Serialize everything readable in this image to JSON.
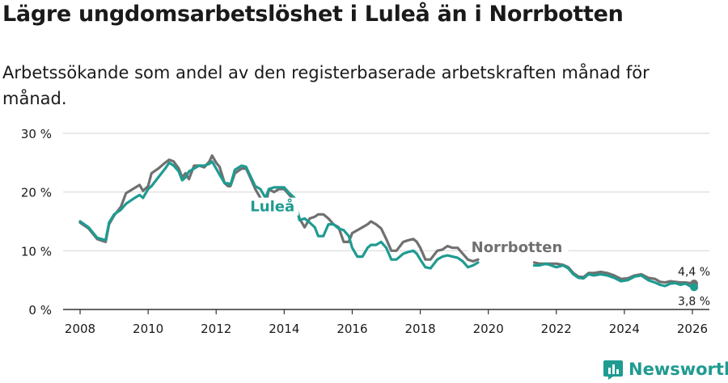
{
  "title": "Lägre ungdomsarbetslöshet i Luleå än i Norrbotten",
  "subtitle": "Arbetssökande som andel av den registerbaserade arbetskraften månad för månad.",
  "brand": "Newsworthy",
  "colors": {
    "lulea": "#1f9b91",
    "norrbotten": "#707070",
    "grid": "#d9d9d9",
    "text": "#1a1a1a",
    "brand": "#1f9b91"
  },
  "chart_data": {
    "type": "line",
    "ylim": [
      0,
      30
    ],
    "xlim": [
      2007.5,
      2026.5
    ],
    "y_ticks": [
      {
        "value": 0,
        "label": "0 %"
      },
      {
        "value": 10,
        "label": "10 %"
      },
      {
        "value": 20,
        "label": "20 %"
      },
      {
        "value": 30,
        "label": "30 %"
      }
    ],
    "x_ticks": [
      {
        "value": 2008,
        "label": "2008"
      },
      {
        "value": 2010,
        "label": "2010"
      },
      {
        "value": 2012,
        "label": "2012"
      },
      {
        "value": 2014,
        "label": "2014"
      },
      {
        "value": 2016,
        "label": "2016"
      },
      {
        "value": 2018,
        "label": "2018"
      },
      {
        "value": 2020,
        "label": "2020"
      },
      {
        "value": 2022,
        "label": "2022"
      },
      {
        "value": 2024,
        "label": "2024"
      },
      {
        "value": 2026,
        "label": "2026"
      }
    ],
    "series": [
      {
        "name": "Norrbotten",
        "label": "Norrbotten",
        "label_at": [
          2019.5,
          9.8
        ],
        "end_label": "4,4 %",
        "end_value": 4.4,
        "points": [
          [
            2008.0,
            14.8
          ],
          [
            2008.25,
            13.8
          ],
          [
            2008.5,
            12.0
          ],
          [
            2008.75,
            11.5
          ],
          [
            2008.85,
            14.5
          ],
          [
            2009.0,
            16.0
          ],
          [
            2009.2,
            17.5
          ],
          [
            2009.35,
            19.8
          ],
          [
            2009.55,
            20.5
          ],
          [
            2009.75,
            21.2
          ],
          [
            2009.85,
            20.2
          ],
          [
            2010.0,
            21.0
          ],
          [
            2010.1,
            23.2
          ],
          [
            2010.3,
            24.0
          ],
          [
            2010.5,
            25.0
          ],
          [
            2010.62,
            25.5
          ],
          [
            2010.75,
            25.2
          ],
          [
            2010.9,
            24.0
          ],
          [
            2011.0,
            22.5
          ],
          [
            2011.1,
            23.2
          ],
          [
            2011.2,
            22.2
          ],
          [
            2011.35,
            24.5
          ],
          [
            2011.5,
            24.5
          ],
          [
            2011.65,
            24.2
          ],
          [
            2011.8,
            25.2
          ],
          [
            2011.88,
            26.2
          ],
          [
            2012.0,
            25.0
          ],
          [
            2012.1,
            24.3
          ],
          [
            2012.25,
            21.5
          ],
          [
            2012.35,
            21.0
          ],
          [
            2012.42,
            21.0
          ],
          [
            2012.55,
            23.2
          ],
          [
            2012.75,
            24.0
          ],
          [
            2012.88,
            24.0
          ],
          [
            2013.0,
            22.5
          ],
          [
            2013.15,
            20.5
          ],
          [
            2013.3,
            19.0
          ],
          [
            2013.45,
            17.5
          ],
          [
            2013.55,
            20.5
          ],
          [
            2013.7,
            20.0
          ],
          [
            2013.85,
            20.5
          ],
          [
            2014.0,
            20.5
          ],
          [
            2014.15,
            19.5
          ],
          [
            2014.3,
            18.5
          ],
          [
            2014.45,
            15.5
          ],
          [
            2014.6,
            14.0
          ],
          [
            2014.75,
            15.5
          ],
          [
            2014.9,
            15.8
          ],
          [
            2015.0,
            16.2
          ],
          [
            2015.15,
            16.2
          ],
          [
            2015.3,
            15.5
          ],
          [
            2015.45,
            14.5
          ],
          [
            2015.6,
            14.0
          ],
          [
            2015.75,
            11.5
          ],
          [
            2015.9,
            11.5
          ],
          [
            2016.0,
            13.0
          ],
          [
            2016.15,
            13.5
          ],
          [
            2016.3,
            14.0
          ],
          [
            2016.45,
            14.5
          ],
          [
            2016.55,
            15.0
          ],
          [
            2016.7,
            14.5
          ],
          [
            2016.85,
            13.8
          ],
          [
            2017.0,
            12.0
          ],
          [
            2017.15,
            10.0
          ],
          [
            2017.3,
            10.0
          ],
          [
            2017.5,
            11.5
          ],
          [
            2017.65,
            11.8
          ],
          [
            2017.8,
            12.0
          ],
          [
            2017.9,
            11.5
          ],
          [
            2018.0,
            10.5
          ],
          [
            2018.15,
            8.5
          ],
          [
            2018.3,
            8.5
          ],
          [
            2018.5,
            10.0
          ],
          [
            2018.65,
            10.2
          ],
          [
            2018.8,
            10.8
          ],
          [
            2018.95,
            10.5
          ],
          [
            2019.1,
            10.5
          ],
          [
            2019.25,
            9.5
          ],
          [
            2019.4,
            8.5
          ],
          [
            2019.55,
            8.2
          ],
          [
            2019.7,
            8.5
          ]
        ],
        "points_late": [
          [
            2021.35,
            8.0
          ],
          [
            2021.5,
            7.8
          ],
          [
            2021.7,
            7.8
          ],
          [
            2021.85,
            7.8
          ],
          [
            2022.0,
            7.8
          ],
          [
            2022.2,
            7.6
          ],
          [
            2022.35,
            7.2
          ],
          [
            2022.5,
            6.2
          ],
          [
            2022.65,
            5.6
          ],
          [
            2022.8,
            5.5
          ],
          [
            2022.95,
            6.2
          ],
          [
            2023.1,
            6.2
          ],
          [
            2023.3,
            6.4
          ],
          [
            2023.5,
            6.2
          ],
          [
            2023.7,
            5.8
          ],
          [
            2023.9,
            5.2
          ],
          [
            2024.1,
            5.3
          ],
          [
            2024.3,
            5.8
          ],
          [
            2024.5,
            6.0
          ],
          [
            2024.7,
            5.4
          ],
          [
            2024.9,
            5.2
          ],
          [
            2025.05,
            4.7
          ],
          [
            2025.2,
            4.6
          ],
          [
            2025.35,
            4.8
          ],
          [
            2025.5,
            4.7
          ],
          [
            2025.65,
            4.6
          ],
          [
            2025.8,
            4.6
          ],
          [
            2025.92,
            4.5
          ],
          [
            2026.05,
            4.4
          ]
        ]
      },
      {
        "name": "Luleå",
        "label": "Luleå",
        "label_at": [
          2013.0,
          16.7
        ],
        "end_label": "3,8 %",
        "end_value": 3.8,
        "points": [
          [
            2008.0,
            15.0
          ],
          [
            2008.25,
            14.0
          ],
          [
            2008.5,
            12.2
          ],
          [
            2008.75,
            11.8
          ],
          [
            2008.85,
            14.8
          ],
          [
            2009.0,
            16.2
          ],
          [
            2009.2,
            17.0
          ],
          [
            2009.35,
            18.0
          ],
          [
            2009.55,
            18.8
          ],
          [
            2009.75,
            19.5
          ],
          [
            2009.85,
            19.0
          ],
          [
            2010.0,
            20.5
          ],
          [
            2010.1,
            21.0
          ],
          [
            2010.3,
            22.5
          ],
          [
            2010.5,
            24.0
          ],
          [
            2010.62,
            25.0
          ],
          [
            2010.75,
            24.5
          ],
          [
            2010.9,
            23.5
          ],
          [
            2011.0,
            22.0
          ],
          [
            2011.1,
            22.5
          ],
          [
            2011.2,
            23.5
          ],
          [
            2011.35,
            24.0
          ],
          [
            2011.5,
            24.5
          ],
          [
            2011.65,
            24.5
          ],
          [
            2011.8,
            24.8
          ],
          [
            2011.88,
            25.2
          ],
          [
            2012.0,
            24.0
          ],
          [
            2012.1,
            23.0
          ],
          [
            2012.25,
            21.5
          ],
          [
            2012.35,
            21.5
          ],
          [
            2012.42,
            21.2
          ],
          [
            2012.55,
            23.8
          ],
          [
            2012.75,
            24.5
          ],
          [
            2012.88,
            24.3
          ],
          [
            2013.0,
            22.8
          ],
          [
            2013.15,
            21.0
          ],
          [
            2013.3,
            20.5
          ],
          [
            2013.45,
            19.0
          ],
          [
            2013.55,
            20.5
          ],
          [
            2013.7,
            20.8
          ],
          [
            2013.85,
            20.8
          ],
          [
            2014.0,
            20.8
          ],
          [
            2014.15,
            19.8
          ],
          [
            2014.3,
            19.0
          ],
          [
            2014.45,
            15.2
          ],
          [
            2014.6,
            15.5
          ],
          [
            2014.75,
            14.8
          ],
          [
            2014.9,
            14.0
          ],
          [
            2015.0,
            12.5
          ],
          [
            2015.15,
            12.5
          ],
          [
            2015.3,
            14.5
          ],
          [
            2015.45,
            14.5
          ],
          [
            2015.6,
            13.8
          ],
          [
            2015.75,
            13.5
          ],
          [
            2015.9,
            12.5
          ],
          [
            2016.0,
            10.5
          ],
          [
            2016.15,
            9.0
          ],
          [
            2016.3,
            9.0
          ],
          [
            2016.45,
            10.5
          ],
          [
            2016.55,
            11.0
          ],
          [
            2016.7,
            11.0
          ],
          [
            2016.85,
            11.5
          ],
          [
            2017.0,
            10.5
          ],
          [
            2017.15,
            8.5
          ],
          [
            2017.3,
            8.5
          ],
          [
            2017.5,
            9.5
          ],
          [
            2017.65,
            9.8
          ],
          [
            2017.8,
            10.0
          ],
          [
            2017.9,
            9.5
          ],
          [
            2018.0,
            8.5
          ],
          [
            2018.15,
            7.2
          ],
          [
            2018.3,
            7.0
          ],
          [
            2018.5,
            8.5
          ],
          [
            2018.65,
            9.0
          ],
          [
            2018.8,
            9.2
          ],
          [
            2018.95,
            9.0
          ],
          [
            2019.1,
            8.8
          ],
          [
            2019.25,
            8.2
          ],
          [
            2019.4,
            7.2
          ],
          [
            2019.55,
            7.5
          ],
          [
            2019.7,
            8.0
          ]
        ],
        "points_late": [
          [
            2021.35,
            7.5
          ],
          [
            2021.5,
            7.5
          ],
          [
            2021.7,
            7.8
          ],
          [
            2021.85,
            7.5
          ],
          [
            2022.0,
            7.2
          ],
          [
            2022.2,
            7.5
          ],
          [
            2022.35,
            7.0
          ],
          [
            2022.5,
            6.0
          ],
          [
            2022.65,
            5.4
          ],
          [
            2022.8,
            5.3
          ],
          [
            2022.95,
            6.0
          ],
          [
            2023.1,
            5.8
          ],
          [
            2023.3,
            6.0
          ],
          [
            2023.5,
            5.8
          ],
          [
            2023.7,
            5.4
          ],
          [
            2023.9,
            4.8
          ],
          [
            2024.1,
            5.0
          ],
          [
            2024.3,
            5.6
          ],
          [
            2024.5,
            5.8
          ],
          [
            2024.7,
            5.0
          ],
          [
            2024.9,
            4.6
          ],
          [
            2025.05,
            4.2
          ],
          [
            2025.2,
            4.0
          ],
          [
            2025.35,
            4.4
          ],
          [
            2025.5,
            4.5
          ],
          [
            2025.65,
            4.2
          ],
          [
            2025.8,
            4.4
          ],
          [
            2025.92,
            4.0
          ],
          [
            2026.05,
            3.8
          ]
        ]
      }
    ]
  }
}
